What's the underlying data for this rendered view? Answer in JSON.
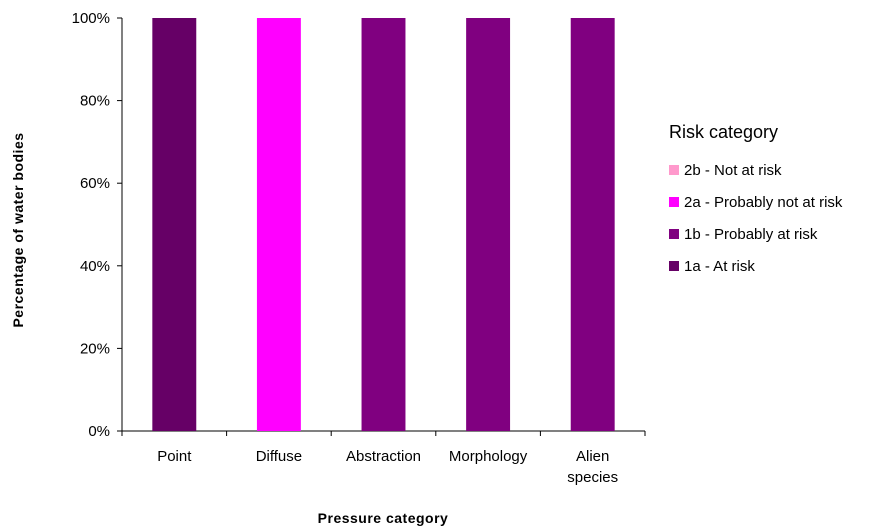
{
  "chart_data": {
    "type": "bar",
    "stacked": true,
    "xlabel": "Pressure category",
    "ylabel": "Percentage of water bodies",
    "ylim": [
      0,
      100
    ],
    "yticks": [
      "0%",
      "20%",
      "40%",
      "60%",
      "80%",
      "100%"
    ],
    "categories": [
      [
        "Point"
      ],
      [
        "Diffuse"
      ],
      [
        "Abstraction"
      ],
      [
        "Morphology"
      ],
      [
        "Alien",
        "species"
      ]
    ],
    "series": [
      {
        "name": "1a - At risk",
        "color": "#660066",
        "values": [
          100,
          0,
          0,
          0,
          0
        ]
      },
      {
        "name": "1b - Probably at risk",
        "color": "#800080",
        "values": [
          0,
          0,
          100,
          100,
          100
        ]
      },
      {
        "name": "2a - Probably not at risk",
        "color": "#ff00ff",
        "values": [
          0,
          100,
          0,
          0,
          0
        ]
      },
      {
        "name": "2b - Not at risk",
        "color": "#ff99cc",
        "values": [
          0,
          0,
          0,
          0,
          0
        ]
      }
    ],
    "legend": {
      "title": "Risk category",
      "position": "right",
      "order": [
        "2b - Not at risk",
        "2a - Probably not at risk",
        "1b - Probably at risk",
        "1a - At risk"
      ]
    },
    "grid": false
  }
}
